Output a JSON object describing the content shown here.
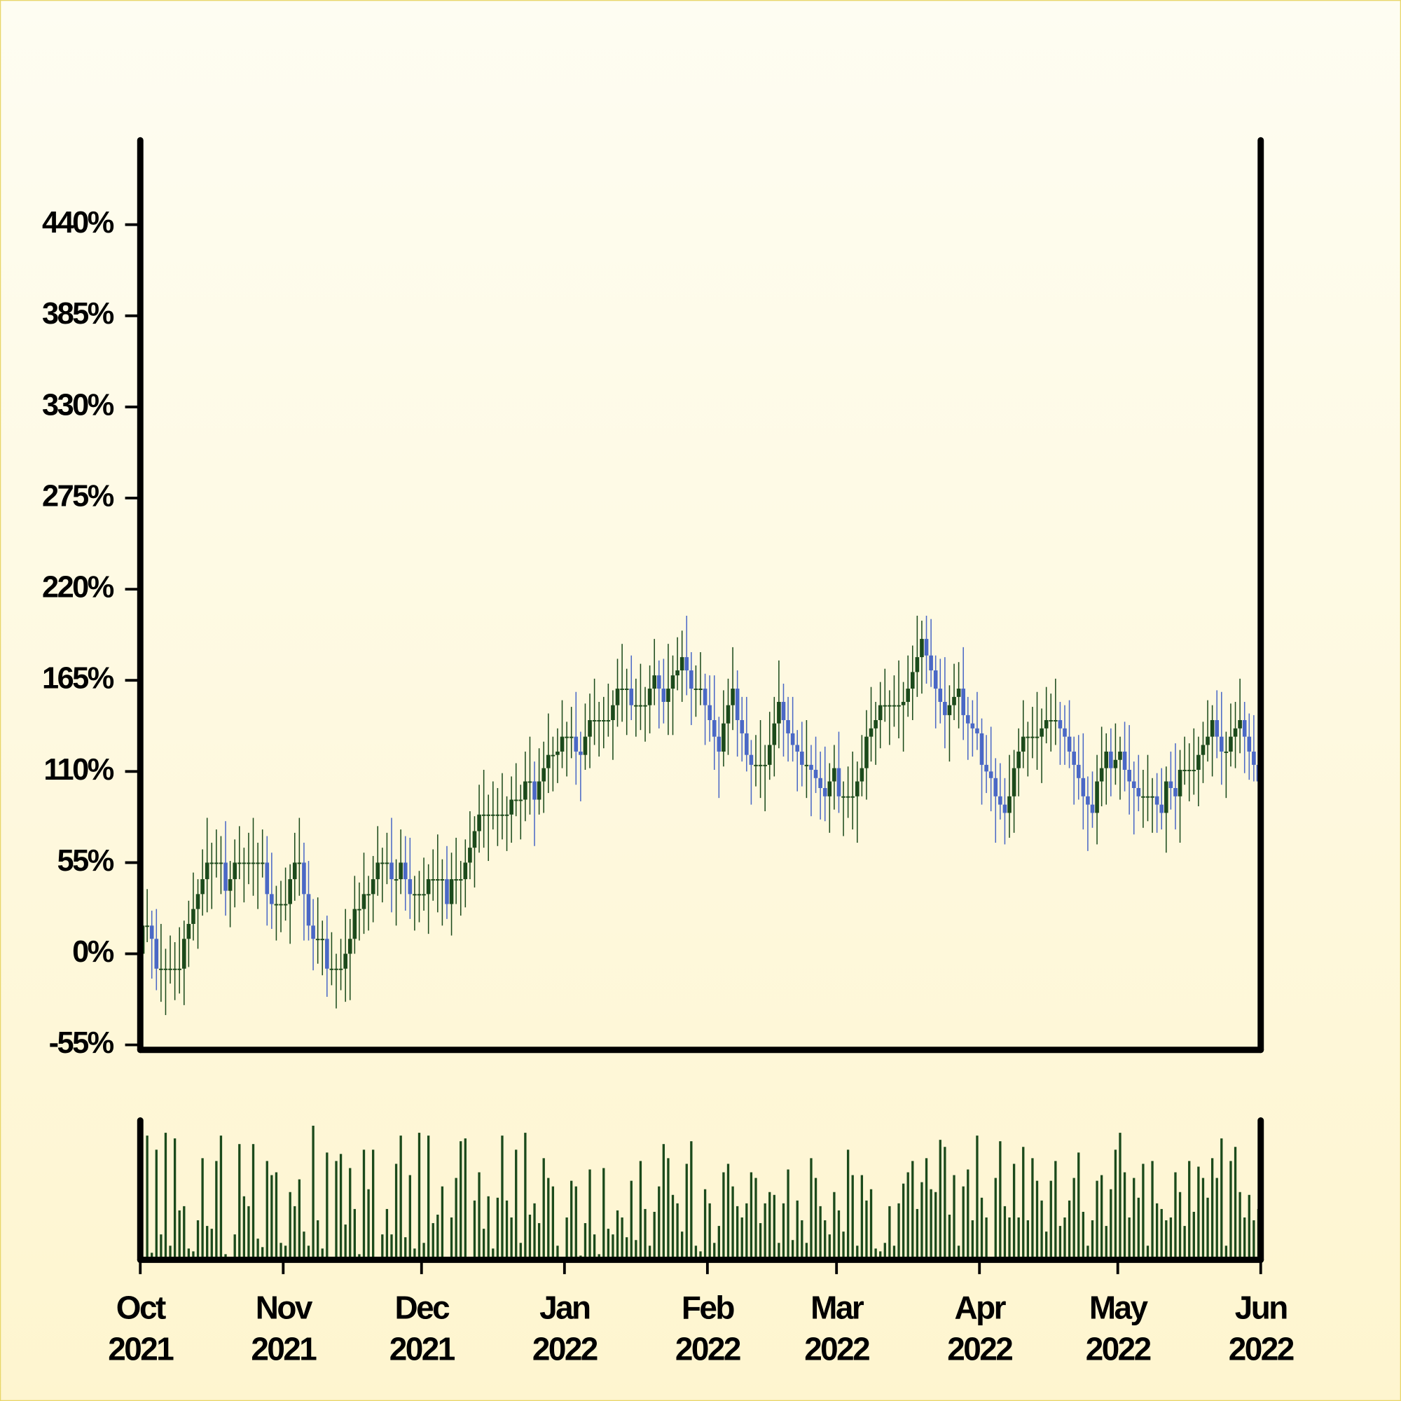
{
  "chart_data": {
    "type": "candlestick",
    "xlim": [
      "2021-10",
      "2022-06"
    ],
    "xticks": [
      {
        "value": "2021-10",
        "label": "Oct 2021"
      },
      {
        "value": "2021-11",
        "label": "Nov 2021"
      },
      {
        "value": "2021-12",
        "label": "Dec 2021"
      },
      {
        "value": "2022-01",
        "label": "Jan 2022"
      },
      {
        "value": "2022-02",
        "label": "Feb 2022"
      },
      {
        "value": "2022-03",
        "label": "Mar 2022"
      },
      {
        "value": "2022-04",
        "label": "Apr 2022"
      },
      {
        "value": "2022-05",
        "label": "May 2022"
      },
      {
        "value": "2022-06",
        "label": "Jun 2022"
      }
    ],
    "ylim": [
      -58,
      492
    ],
    "yticks": [
      {
        "value": -55,
        "label": "-55%"
      },
      {
        "value": 0,
        "label": "0%"
      },
      {
        "value": 55,
        "label": "55%"
      },
      {
        "value": 110,
        "label": "110%"
      },
      {
        "value": 165,
        "label": "165%"
      },
      {
        "value": 220,
        "label": "220%"
      },
      {
        "value": 275,
        "label": "275%"
      },
      {
        "value": 330,
        "label": "330%"
      },
      {
        "value": 385,
        "label": "385%"
      },
      {
        "value": 440,
        "label": "440%"
      }
    ],
    "up_color": "#1b4a1b",
    "down_color": "#4a68c6",
    "volume_color": "#1b4a1b",
    "volume_ylim": [
      0,
      100
    ],
    "open": [
      0,
      17,
      17,
      9,
      -9,
      -9,
      -9,
      -9,
      -9,
      -9,
      9,
      18,
      27,
      36,
      45,
      55,
      55,
      55,
      55,
      38,
      45,
      55,
      55,
      55,
      55,
      55,
      55,
      55,
      36,
      30,
      30,
      30,
      30,
      45,
      55,
      55,
      36,
      17,
      9,
      9,
      9,
      -9,
      -9,
      -9,
      -9,
      0,
      9,
      27,
      27,
      36,
      36,
      45,
      55,
      55,
      55,
      45,
      45,
      55,
      45,
      36,
      36,
      36,
      36,
      45,
      45,
      45,
      45,
      30,
      45,
      45,
      45,
      55,
      64,
      74,
      84,
      84,
      84,
      84,
      84,
      84,
      84,
      93,
      93,
      93,
      104,
      104,
      93,
      104,
      112,
      120,
      120,
      122,
      131,
      131,
      131,
      122,
      120,
      131,
      141,
      141,
      141,
      141,
      141,
      150,
      160,
      160,
      160,
      150,
      150,
      150,
      150,
      160,
      168,
      160,
      152,
      160,
      168,
      171,
      179,
      171,
      160,
      160,
      160,
      150,
      141,
      131,
      122,
      139,
      150,
      160,
      141,
      133,
      120,
      114,
      114,
      114,
      114,
      126,
      139,
      152,
      141,
      133,
      126,
      122,
      114,
      114,
      111,
      106,
      100,
      95,
      104,
      112,
      95,
      95,
      95,
      95,
      104,
      112,
      131,
      136,
      141,
      150,
      150,
      150,
      150,
      150,
      152,
      160,
      170,
      179,
      190,
      180,
      171,
      160,
      152,
      144,
      150,
      155,
      160,
      144,
      139,
      136,
      133,
      114,
      110,
      106,
      95,
      90,
      85,
      95,
      112,
      122,
      131,
      131,
      131,
      131,
      136,
      141,
      141,
      141,
      136,
      131,
      122,
      114,
      106,
      95,
      90,
      85,
      104,
      112,
      122,
      112,
      117,
      122,
      111,
      104,
      100,
      95,
      95,
      95,
      95,
      90,
      85,
      104,
      100,
      95,
      111,
      111,
      111,
      111,
      120,
      126,
      131,
      141,
      131,
      122,
      122,
      131,
      136,
      141,
      131,
      122,
      114
    ],
    "high": [
      31,
      39,
      26,
      27,
      18,
      3,
      11,
      7,
      16,
      20,
      32,
      49,
      45,
      63,
      82,
      67,
      75,
      71,
      80,
      56,
      69,
      77,
      64,
      73,
      82,
      67,
      75,
      71,
      61,
      41,
      44,
      52,
      54,
      73,
      82,
      67,
      56,
      33,
      34,
      20,
      23,
      13,
      0,
      9,
      27,
      21,
      47,
      43,
      61,
      47,
      59,
      77,
      64,
      73,
      82,
      57,
      75,
      71,
      70,
      47,
      50,
      58,
      54,
      63,
      72,
      57,
      65,
      61,
      70,
      56,
      69,
      86,
      83,
      102,
      111,
      96,
      104,
      100,
      109,
      95,
      107,
      115,
      102,
      122,
      131,
      116,
      124,
      128,
      145,
      131,
      136,
      153,
      140,
      149,
      158,
      134,
      151,
      157,
      166,
      152,
      155,
      163,
      159,
      178,
      187,
      172,
      180,
      166,
      175,
      161,
      174,
      190,
      177,
      178,
      187,
      180,
      191,
      195,
      204,
      182,
      174,
      182,
      169,
      168,
      168,
      143,
      159,
      166,
      185,
      171,
      155,
      155,
      129,
      132,
      141,
      126,
      146,
      155,
      177,
      163,
      155,
      155,
      135,
      140,
      141,
      126,
      131,
      122,
      125,
      115,
      126,
      134,
      104,
      113,
      122,
      116,
      132,
      147,
      161,
      152,
      164,
      172,
      159,
      168,
      177,
      164,
      180,
      186,
      204,
      201,
      204,
      202,
      180,
      178,
      179,
      162,
      175,
      176,
      185,
      155,
      153,
      158,
      142,
      132,
      137,
      118,
      115,
      106,
      120,
      123,
      136,
      153,
      140,
      149,
      158,
      148,
      161,
      157,
      166,
      152,
      150,
      153,
      131,
      132,
      133,
      107,
      110,
      120,
      137,
      133,
      136,
      139,
      131,
      140,
      138,
      116,
      120,
      111,
      120,
      106,
      109,
      112,
      113,
      122,
      127,
      123,
      131,
      127,
      136,
      131,
      140,
      153,
      150,
      159,
      158,
      134,
      151,
      152,
      166,
      152,
      145,
      144,
      123
    ],
    "low": [
      -17,
      7,
      -15,
      -22,
      -29,
      -37,
      -18,
      -28,
      -24,
      -31,
      -8,
      8,
      3,
      23,
      25,
      27,
      46,
      36,
      23,
      16,
      28,
      45,
      31,
      42,
      35,
      27,
      46,
      17,
      15,
      8,
      13,
      20,
      6,
      32,
      35,
      8,
      8,
      -10,
      -6,
      -13,
      -26,
      -19,
      -33,
      -22,
      -29,
      -28,
      0,
      8,
      12,
      14,
      19,
      35,
      31,
      42,
      25,
      17,
      36,
      26,
      21,
      14,
      19,
      26,
      12,
      32,
      25,
      17,
      21,
      11,
      30,
      23,
      28,
      45,
      40,
      61,
      64,
      56,
      75,
      65,
      69,
      62,
      67,
      83,
      69,
      80,
      84,
      65,
      84,
      85,
      97,
      98,
      103,
      112,
      107,
      118,
      102,
      92,
      111,
      112,
      126,
      119,
      124,
      131,
      117,
      137,
      140,
      132,
      141,
      131,
      135,
      128,
      133,
      150,
      136,
      139,
      132,
      132,
      159,
      152,
      156,
      138,
      143,
      150,
      126,
      128,
      111,
      94,
      113,
      120,
      135,
      119,
      116,
      110,
      90,
      101,
      94,
      86,
      105,
      107,
      124,
      119,
      116,
      116,
      98,
      101,
      94,
      83,
      97,
      81,
      80,
      73,
      87,
      85,
      71,
      82,
      75,
      67,
      95,
      93,
      116,
      114,
      124,
      140,
      126,
      137,
      130,
      122,
      143,
      141,
      155,
      157,
      163,
      161,
      136,
      139,
      124,
      116,
      141,
      136,
      129,
      117,
      119,
      123,
      90,
      97,
      86,
      67,
      81,
      66,
      70,
      73,
      95,
      112,
      107,
      118,
      111,
      103,
      127,
      122,
      126,
      114,
      114,
      112,
      90,
      93,
      75,
      62,
      76,
      66,
      89,
      90,
      95,
      102,
      93,
      98,
      84,
      72,
      86,
      76,
      80,
      73,
      73,
      75,
      61,
      87,
      75,
      67,
      102,
      92,
      96,
      89,
      103,
      116,
      107,
      118,
      102,
      94,
      113,
      112,
      121,
      109,
      105,
      104,
      80
    ],
    "close": [
      17,
      17,
      9,
      -9,
      -9,
      -9,
      -9,
      -9,
      -9,
      9,
      18,
      27,
      36,
      45,
      55,
      55,
      55,
      55,
      38,
      45,
      55,
      55,
      55,
      55,
      55,
      55,
      55,
      36,
      30,
      30,
      30,
      30,
      45,
      55,
      55,
      36,
      17,
      9,
      9,
      9,
      -9,
      -9,
      -9,
      -9,
      0,
      9,
      27,
      27,
      36,
      36,
      45,
      55,
      55,
      55,
      45,
      45,
      55,
      45,
      36,
      36,
      36,
      36,
      45,
      45,
      45,
      45,
      30,
      45,
      45,
      45,
      55,
      64,
      74,
      84,
      84,
      84,
      84,
      84,
      84,
      84,
      93,
      93,
      93,
      104,
      104,
      93,
      104,
      112,
      120,
      120,
      122,
      131,
      131,
      131,
      122,
      120,
      131,
      141,
      141,
      141,
      141,
      141,
      150,
      160,
      160,
      160,
      150,
      150,
      150,
      150,
      160,
      168,
      160,
      152,
      160,
      168,
      171,
      179,
      171,
      160,
      160,
      160,
      150,
      141,
      131,
      122,
      139,
      150,
      160,
      141,
      133,
      120,
      114,
      114,
      114,
      114,
      126,
      139,
      152,
      141,
      133,
      126,
      122,
      114,
      114,
      111,
      106,
      100,
      95,
      104,
      112,
      95,
      95,
      95,
      95,
      104,
      112,
      131,
      136,
      141,
      150,
      150,
      150,
      150,
      150,
      152,
      160,
      170,
      179,
      190,
      180,
      171,
      160,
      152,
      144,
      150,
      155,
      160,
      144,
      139,
      136,
      133,
      114,
      110,
      106,
      95,
      90,
      85,
      95,
      112,
      122,
      131,
      131,
      131,
      131,
      136,
      141,
      141,
      141,
      136,
      131,
      122,
      114,
      106,
      95,
      90,
      85,
      104,
      112,
      122,
      112,
      117,
      122,
      111,
      104,
      100,
      95,
      95,
      95,
      95,
      90,
      85,
      104,
      100,
      95,
      111,
      111,
      111,
      111,
      120,
      126,
      131,
      141,
      131,
      122,
      122,
      131,
      136,
      141,
      131,
      122,
      114,
      104
    ],
    "volume": [
      2,
      88,
      5,
      78,
      18,
      90,
      10,
      86,
      35,
      38,
      8,
      6,
      28,
      72,
      24,
      22,
      70,
      88,
      4,
      1,
      18,
      82,
      45,
      38,
      82,
      15,
      9,
      70,
      60,
      62,
      12,
      10,
      48,
      38,
      57,
      20,
      10,
      95,
      28,
      8,
      76,
      2,
      70,
      75,
      25,
      65,
      36,
      4,
      78,
      50,
      78,
      2,
      18,
      36,
      18,
      68,
      88,
      16,
      60,
      8,
      90,
      12,
      88,
      26,
      32,
      52,
      2,
      30,
      58,
      84,
      86,
      2,
      42,
      62,
      22,
      45,
      8,
      44,
      88,
      42,
      30,
      78,
      12,
      90,
      32,
      40,
      26,
      72,
      58,
      52,
      10,
      0,
      30,
      56,
      52,
      3,
      26,
      64,
      18,
      4,
      65,
      22,
      18,
      35,
      30,
      16,
      56,
      14,
      70,
      36,
      10,
      34,
      52,
      82,
      72,
      46,
      40,
      20,
      68,
      84,
      10,
      6,
      50,
      40,
      12,
      24,
      62,
      68,
      52,
      38,
      30,
      40,
      62,
      58,
      26,
      40,
      48,
      46,
      12,
      40,
      64,
      14,
      42,
      28,
      12,
      72,
      58,
      38,
      28,
      18,
      48,
      35,
      20,
      78,
      60,
      10,
      60,
      42,
      50,
      8,
      6,
      12,
      38,
      10,
      40,
      54,
      62,
      70,
      36,
      55,
      72,
      50,
      48,
      85,
      80,
      32,
      60,
      10,
      52,
      64,
      28,
      88,
      44,
      30,
      0,
      58,
      84,
      38,
      30,
      68,
      30,
      80,
      28,
      72,
      56,
      42,
      20,
      56,
      70,
      24,
      30,
      42,
      58,
      76,
      34,
      10,
      28,
      56,
      60,
      24,
      50,
      78,
      90,
      62,
      30,
      58,
      44,
      68,
      10,
      70,
      40,
      36,
      28,
      30,
      62,
      48,
      24,
      70,
      34,
      66,
      58,
      44,
      72,
      58,
      86,
      10,
      70,
      80,
      48,
      30,
      46,
      28,
      36
    ]
  }
}
